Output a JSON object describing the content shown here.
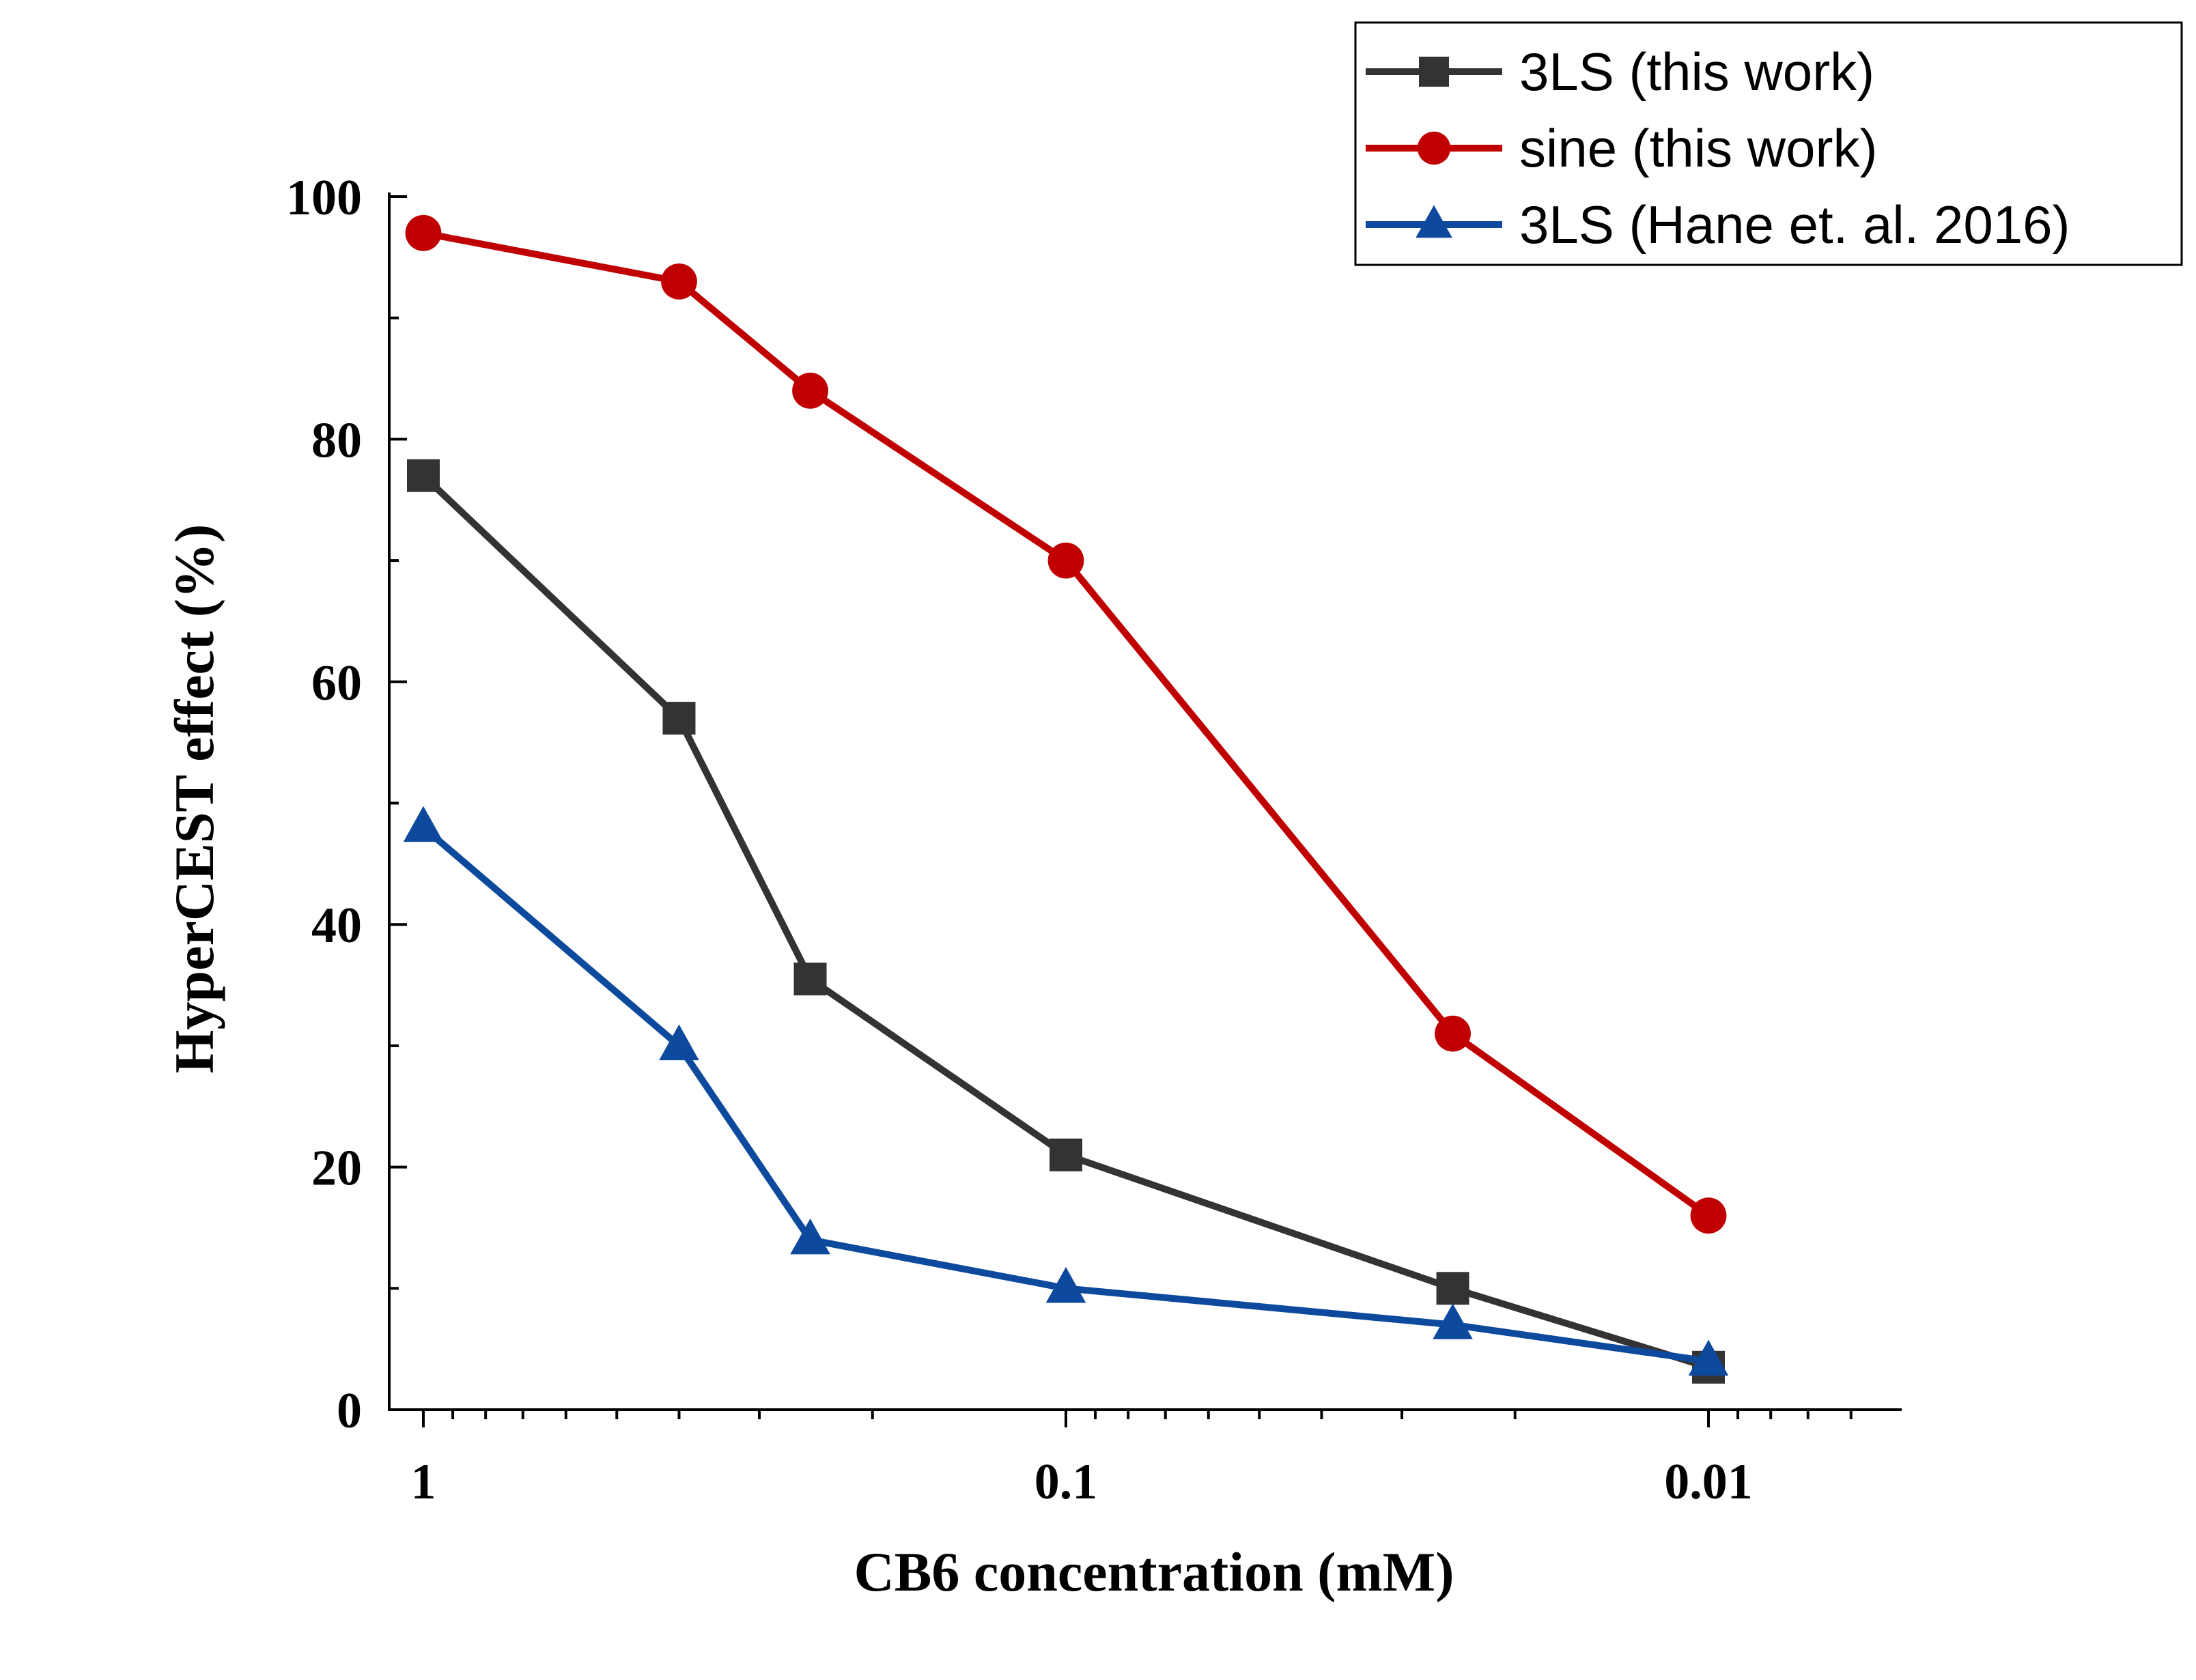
{
  "chart_data": {
    "type": "line",
    "title": "",
    "xlabel": "CB6 concentration (mM)",
    "ylabel": "HyperCEST effect (%)",
    "x_scale": "log",
    "x_reversed": true,
    "xlim": [
      1,
      0.0055
    ],
    "ylim": [
      0,
      100
    ],
    "x_ticks": [
      {
        "value": 1,
        "label": "1"
      },
      {
        "value": 0.1,
        "label": "0.1"
      },
      {
        "value": 0.01,
        "label": "0.01"
      }
    ],
    "y_ticks": [
      {
        "value": 0,
        "label": "0"
      },
      {
        "value": 20,
        "label": "20"
      },
      {
        "value": 40,
        "label": "40"
      },
      {
        "value": 60,
        "label": "60"
      },
      {
        "value": 80,
        "label": "80"
      },
      {
        "value": 100,
        "label": "100"
      }
    ],
    "x": [
      1,
      0.4,
      0.25,
      0.1,
      0.025,
      0.01
    ],
    "series": [
      {
        "name": "3LS (this work)",
        "color": "#333333",
        "marker": "square",
        "values": [
          77,
          57,
          35.5,
          21,
          10,
          3.5
        ]
      },
      {
        "name": "sine (this work)",
        "color": "#c00000",
        "marker": "circle",
        "values": [
          97,
          93,
          84,
          70,
          31,
          16
        ]
      },
      {
        "name": "3LS (Hane et. al. 2016)",
        "color": "#0d4a9e",
        "marker": "triangle",
        "values": [
          48,
          30,
          14,
          10,
          7,
          4
        ]
      }
    ],
    "legend_position": "top-right",
    "grid": false
  }
}
